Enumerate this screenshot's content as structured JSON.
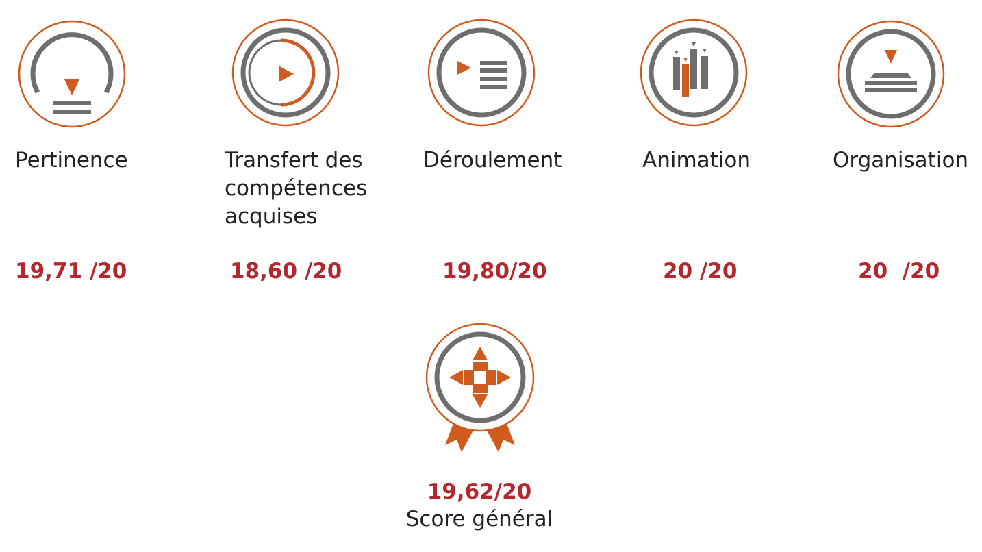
{
  "categories": [
    {
      "label": "Pertinence",
      "score": "19,71 /20",
      "icon": "gauge-icon"
    },
    {
      "label": "Transfert des\ncompétences\n  acquises",
      "score": "18,60 /20",
      "icon": "play-arc-icon"
    },
    {
      "label": "Déroulement",
      "score": "19,80/20",
      "icon": "play-list-icon"
    },
    {
      "label": "Animation",
      "score": "20 /20",
      "icon": "people-icon"
    },
    {
      "label": "Organisation",
      "score": "20  /20",
      "icon": "layers-icon"
    }
  ],
  "overall": {
    "score": "19,62/20",
    "label": "Score général",
    "icon": "award-ribbon-icon"
  },
  "colors": {
    "accent": "#cf5b1e",
    "gray": "#6e6e6e",
    "score": "#b3282e",
    "text": "#222222"
  }
}
